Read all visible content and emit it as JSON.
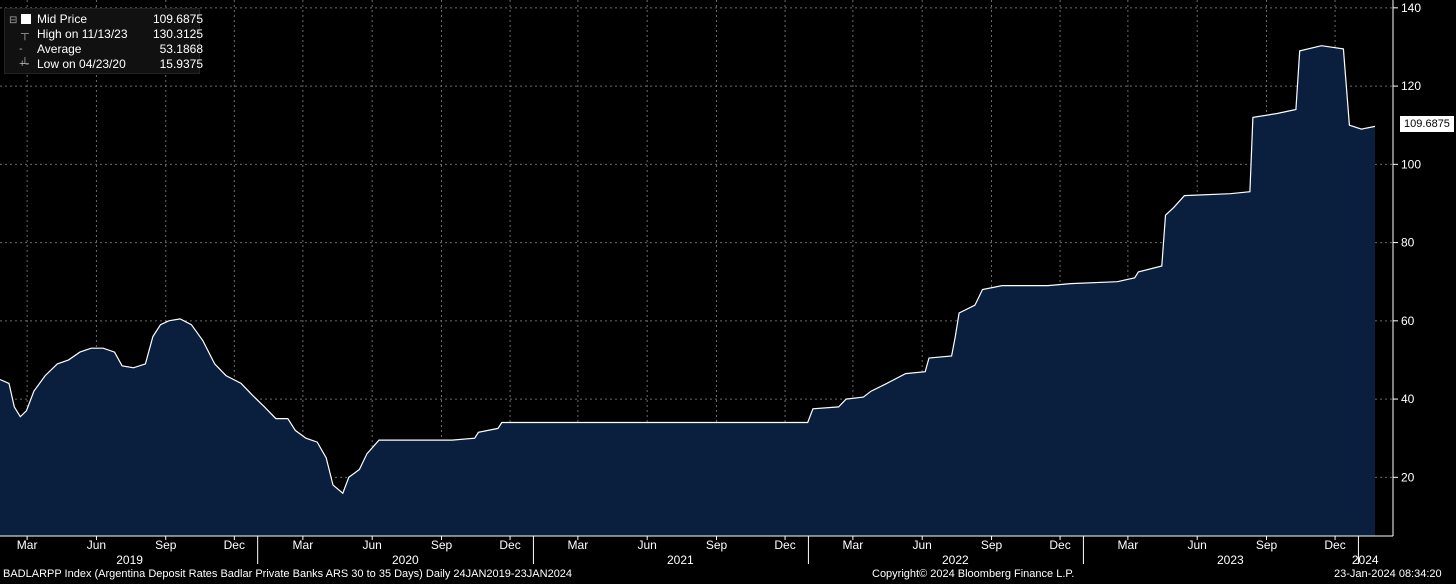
{
  "legend": {
    "mid_price": {
      "label": "Mid Price",
      "value": "109.6875"
    },
    "high": {
      "label": "High on 11/13/23",
      "value": "130.3125"
    },
    "average": {
      "label": "Average",
      "value": "53.1868"
    },
    "low": {
      "label": "Low on 04/23/20",
      "value": "15.9375"
    }
  },
  "last_value_tag": "109.6875",
  "footer": {
    "description": "BADLARPP Index (Argentina Deposit Rates Badlar Private Banks ARS 30 to 35 Days)  Daily 24JAN2019-23JAN2024",
    "copyright": "Copyright© 2024 Bloomberg Finance L.P.",
    "timestamp": "23-Jan-2024 08:34:20"
  },
  "colors": {
    "background": "#000000",
    "area_fill": "#0a1f3d",
    "line": "#ffffff",
    "grid": "#6b6b6b"
  },
  "chart_data": {
    "type": "area",
    "x_axis": {
      "month_ticks": [
        {
          "label": "Mar",
          "date": "2019-03-01"
        },
        {
          "label": "Jun",
          "date": "2019-06-01"
        },
        {
          "label": "Sep",
          "date": "2019-09-01"
        },
        {
          "label": "Dec",
          "date": "2019-12-01"
        },
        {
          "label": "Mar",
          "date": "2020-03-01"
        },
        {
          "label": "Jun",
          "date": "2020-06-01"
        },
        {
          "label": "Sep",
          "date": "2020-09-01"
        },
        {
          "label": "Dec",
          "date": "2020-12-01"
        },
        {
          "label": "Mar",
          "date": "2021-03-01"
        },
        {
          "label": "Jun",
          "date": "2021-06-01"
        },
        {
          "label": "Sep",
          "date": "2021-09-01"
        },
        {
          "label": "Dec",
          "date": "2021-12-01"
        },
        {
          "label": "Mar",
          "date": "2022-03-01"
        },
        {
          "label": "Jun",
          "date": "2022-06-01"
        },
        {
          "label": "Sep",
          "date": "2022-09-01"
        },
        {
          "label": "Dec",
          "date": "2022-12-01"
        },
        {
          "label": "Mar",
          "date": "2023-03-01"
        },
        {
          "label": "Jun",
          "date": "2023-06-01"
        },
        {
          "label": "Sep",
          "date": "2023-09-01"
        },
        {
          "label": "Dec",
          "date": "2023-12-01"
        }
      ],
      "year_labels": [
        {
          "label": "2019",
          "date": "2019-07-15"
        },
        {
          "label": "2020",
          "date": "2020-07-15"
        },
        {
          "label": "2021",
          "date": "2021-07-15"
        },
        {
          "label": "2022",
          "date": "2022-07-15"
        },
        {
          "label": "2023",
          "date": "2023-07-15"
        },
        {
          "label": "2024",
          "date": "2024-01-10"
        }
      ],
      "year_dividers": [
        "2020-01-01",
        "2021-01-01",
        "2022-01-01",
        "2023-01-01",
        "2024-01-01"
      ],
      "range": [
        "2019-01-24",
        "2024-01-23"
      ]
    },
    "y_axis": {
      "ticks": [
        20,
        40,
        60,
        80,
        100,
        120,
        140
      ],
      "range": [
        5,
        142
      ],
      "position": "right"
    },
    "grid": true,
    "series": [
      {
        "name": "Mid Price",
        "points": [
          {
            "x": "2019-01-24",
            "y": 45
          },
          {
            "x": "2019-02-05",
            "y": 44
          },
          {
            "x": "2019-02-12",
            "y": 38
          },
          {
            "x": "2019-02-20",
            "y": 35.5
          },
          {
            "x": "2019-02-28",
            "y": 37
          },
          {
            "x": "2019-03-10",
            "y": 42
          },
          {
            "x": "2019-03-25",
            "y": 46
          },
          {
            "x": "2019-04-10",
            "y": 49
          },
          {
            "x": "2019-04-25",
            "y": 50
          },
          {
            "x": "2019-05-10",
            "y": 52
          },
          {
            "x": "2019-05-25",
            "y": 53
          },
          {
            "x": "2019-06-10",
            "y": 53
          },
          {
            "x": "2019-06-25",
            "y": 52
          },
          {
            "x": "2019-07-05",
            "y": 48.5
          },
          {
            "x": "2019-07-20",
            "y": 48
          },
          {
            "x": "2019-08-05",
            "y": 49
          },
          {
            "x": "2019-08-15",
            "y": 56
          },
          {
            "x": "2019-08-25",
            "y": 59
          },
          {
            "x": "2019-09-05",
            "y": 60
          },
          {
            "x": "2019-09-20",
            "y": 60.5
          },
          {
            "x": "2019-10-05",
            "y": 59
          },
          {
            "x": "2019-10-20",
            "y": 55
          },
          {
            "x": "2019-11-05",
            "y": 49
          },
          {
            "x": "2019-11-20",
            "y": 46
          },
          {
            "x": "2019-12-10",
            "y": 44
          },
          {
            "x": "2019-12-25",
            "y": 41
          },
          {
            "x": "2020-01-10",
            "y": 38
          },
          {
            "x": "2020-01-25",
            "y": 35
          },
          {
            "x": "2020-02-10",
            "y": 35
          },
          {
            "x": "2020-02-20",
            "y": 32
          },
          {
            "x": "2020-03-05",
            "y": 30
          },
          {
            "x": "2020-03-20",
            "y": 29
          },
          {
            "x": "2020-04-01",
            "y": 25
          },
          {
            "x": "2020-04-10",
            "y": 18
          },
          {
            "x": "2020-04-23",
            "y": 15.9375
          },
          {
            "x": "2020-05-01",
            "y": 20
          },
          {
            "x": "2020-05-15",
            "y": 22
          },
          {
            "x": "2020-05-25",
            "y": 26
          },
          {
            "x": "2020-06-10",
            "y": 29.5
          },
          {
            "x": "2020-07-15",
            "y": 29.5
          },
          {
            "x": "2020-09-15",
            "y": 29.5
          },
          {
            "x": "2020-10-15",
            "y": 30
          },
          {
            "x": "2020-10-20",
            "y": 31.5
          },
          {
            "x": "2020-11-15",
            "y": 32.5
          },
          {
            "x": "2020-11-20",
            "y": 34
          },
          {
            "x": "2021-06-01",
            "y": 34
          },
          {
            "x": "2021-12-31",
            "y": 34
          },
          {
            "x": "2022-01-07",
            "y": 37.5
          },
          {
            "x": "2022-02-10",
            "y": 38
          },
          {
            "x": "2022-02-20",
            "y": 40
          },
          {
            "x": "2022-03-15",
            "y": 40.5
          },
          {
            "x": "2022-03-25",
            "y": 42
          },
          {
            "x": "2022-04-15",
            "y": 44
          },
          {
            "x": "2022-05-10",
            "y": 46.5
          },
          {
            "x": "2022-06-05",
            "y": 47
          },
          {
            "x": "2022-06-10",
            "y": 50.5
          },
          {
            "x": "2022-07-10",
            "y": 51
          },
          {
            "x": "2022-07-15",
            "y": 56
          },
          {
            "x": "2022-07-20",
            "y": 62
          },
          {
            "x": "2022-08-10",
            "y": 64
          },
          {
            "x": "2022-08-20",
            "y": 68
          },
          {
            "x": "2022-09-15",
            "y": 69
          },
          {
            "x": "2022-11-15",
            "y": 69
          },
          {
            "x": "2022-12-15",
            "y": 69.5
          },
          {
            "x": "2023-02-15",
            "y": 70
          },
          {
            "x": "2023-03-10",
            "y": 71
          },
          {
            "x": "2023-03-15",
            "y": 72.5
          },
          {
            "x": "2023-04-15",
            "y": 74
          },
          {
            "x": "2023-04-20",
            "y": 87
          },
          {
            "x": "2023-05-01",
            "y": 89
          },
          {
            "x": "2023-05-15",
            "y": 92
          },
          {
            "x": "2023-07-15",
            "y": 92.5
          },
          {
            "x": "2023-08-10",
            "y": 93
          },
          {
            "x": "2023-08-14",
            "y": 112
          },
          {
            "x": "2023-09-15",
            "y": 113
          },
          {
            "x": "2023-10-10",
            "y": 114
          },
          {
            "x": "2023-10-15",
            "y": 129
          },
          {
            "x": "2023-11-13",
            "y": 130.3125
          },
          {
            "x": "2023-12-12",
            "y": 129.5
          },
          {
            "x": "2023-12-20",
            "y": 110
          },
          {
            "x": "2024-01-05",
            "y": 109
          },
          {
            "x": "2024-01-23",
            "y": 109.6875
          }
        ]
      }
    ]
  }
}
